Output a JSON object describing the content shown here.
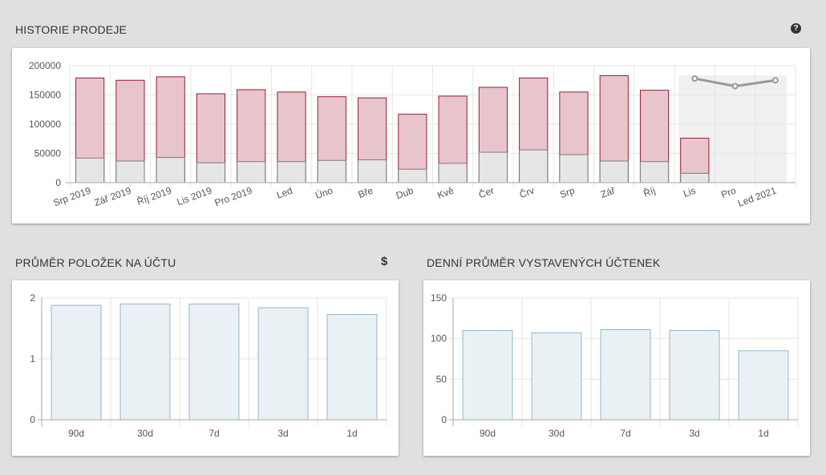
{
  "sales": {
    "title": "HISTORIE PRODEJE",
    "help_icon": "question-circle-icon",
    "help_glyph": "?",
    "chart_data": {
      "type": "bar",
      "categories": [
        "Srp 2019",
        "Zář 2019",
        "Říj 2019",
        "Lis 2019",
        "Pro 2019",
        "Led",
        "Úno",
        "Bře",
        "Dub",
        "Kvě",
        "Čer",
        "Črv",
        "Srp",
        "Zář",
        "Říj",
        "Lis",
        "Pro",
        "Led 2021"
      ],
      "series": [
        {
          "values": [
            179000,
            175000,
            181000,
            152000,
            159000,
            155000,
            147000,
            145000,
            117000,
            148000,
            163000,
            179000,
            155000,
            183000,
            158000,
            76000,
            null,
            null
          ],
          "color": "#e8c5cc",
          "stroke": "#9b1b30"
        },
        {
          "values": [
            42000,
            37000,
            43000,
            34000,
            36000,
            36000,
            38000,
            39000,
            23000,
            33000,
            52000,
            56000,
            48000,
            37000,
            36000,
            16000,
            null,
            null
          ],
          "color": "#e6e6e6",
          "stroke": "#7a7a7a"
        }
      ],
      "forecast": {
        "categories": [
          "Lis",
          "Pro",
          "Led 2021"
        ],
        "values": [
          178000,
          165000,
          175000
        ],
        "color": "#999999"
      },
      "ylim": [
        0,
        200000
      ],
      "yticks": [
        "0",
        "50000",
        "100000",
        "150000",
        "200000"
      ],
      "grid": true
    }
  },
  "items": {
    "title": "PRŮMĚR POLOŽEK NA ÚČTU",
    "icon": "dollar-icon",
    "icon_glyph": "$",
    "chart_data": {
      "type": "bar",
      "categories": [
        "90d",
        "30d",
        "7d",
        "3d",
        "1d"
      ],
      "values": [
        1.88,
        1.9,
        1.9,
        1.84,
        1.73
      ],
      "ylim": [
        0,
        2
      ],
      "yticks": [
        "0",
        "1",
        "2"
      ],
      "color": "#eaf1f5",
      "stroke": "#8fb7cf",
      "grid": true
    }
  },
  "receipts": {
    "title": "DENNÍ PRŮMĚR VYSTAVENÝCH ÚČTENEK",
    "chart_data": {
      "type": "bar",
      "categories": [
        "90d",
        "30d",
        "7d",
        "3d",
        "1d"
      ],
      "values": [
        110,
        107,
        111,
        110,
        85
      ],
      "ylim": [
        0,
        150
      ],
      "yticks": [
        "0",
        "50",
        "100",
        "150"
      ],
      "color": "#eaf1f5",
      "stroke": "#8fb7cf",
      "grid": true
    }
  }
}
